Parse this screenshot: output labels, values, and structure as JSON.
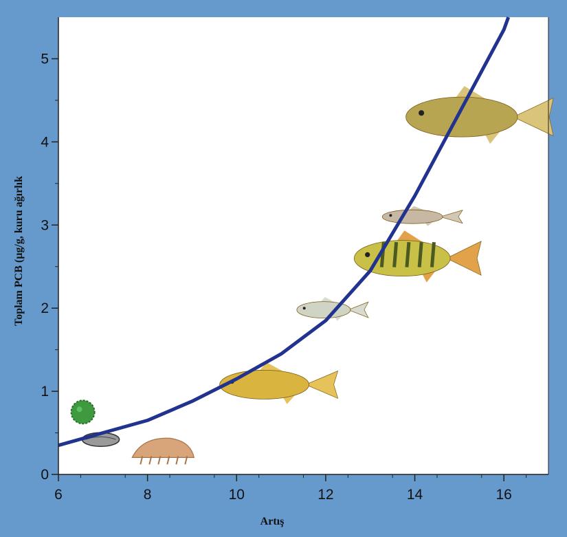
{
  "colors": {
    "background": "#6699cc",
    "plot_area": "#ffffff",
    "curve": "#22338f",
    "axis": "#222222"
  },
  "chart_data": {
    "type": "line",
    "title": "",
    "xlabel": "Artış",
    "ylabel": "Toplam PCB (µg/g, kuru ağırlık",
    "xlim": [
      6,
      17
    ],
    "ylim": [
      0,
      5.5
    ],
    "xticks": [
      6,
      8,
      10,
      12,
      14,
      16
    ],
    "yticks": [
      0,
      1,
      2,
      3,
      4,
      5
    ],
    "grid": false,
    "legend": "none",
    "series": [
      {
        "x": [
          6,
          7,
          8,
          9,
          10,
          11,
          12,
          13,
          14,
          15,
          16,
          16.1
        ],
        "y": [
          0.35,
          0.5,
          0.65,
          0.88,
          1.15,
          1.45,
          1.85,
          2.45,
          3.35,
          4.35,
          5.35,
          5.5
        ]
      }
    ],
    "organisms": [
      {
        "name": "phytoplankton-icon",
        "x": 6.55,
        "y": 0.75
      },
      {
        "name": "mussel-icon",
        "x": 6.95,
        "y": 0.42
      },
      {
        "name": "amphipod-icon",
        "x": 8.35,
        "y": 0.27
      },
      {
        "name": "sculpin-fish-icon",
        "x": 10.7,
        "y": 1.08
      },
      {
        "name": "alewife-fish-icon",
        "x": 12.0,
        "y": 1.98
      },
      {
        "name": "perch-fish-icon",
        "x": 13.8,
        "y": 2.6
      },
      {
        "name": "smelt-fish-icon",
        "x": 14.0,
        "y": 3.1
      },
      {
        "name": "walleye-fish-icon",
        "x": 15.15,
        "y": 4.3
      }
    ]
  }
}
